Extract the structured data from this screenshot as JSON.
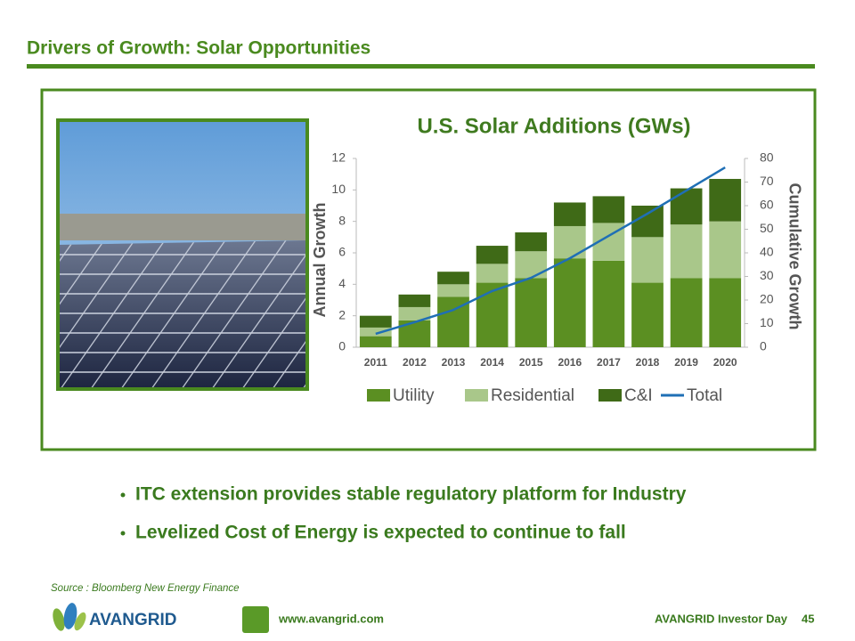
{
  "slide": {
    "title": "Drivers of Growth: Solar Opportunities",
    "bullets": [
      "ITC extension provides stable regulatory platform for Industry",
      "Levelized Cost of Energy is expected to continue to fall"
    ],
    "source": "Source : Bloomberg New Energy Finance",
    "logo": "AVANGRID",
    "website": "www.avangrid.com",
    "event": "AVANGRID Investor Day",
    "page": 45
  },
  "chart_data": {
    "type": "bar",
    "stacked": true,
    "title": "U.S. Solar Additions (GWs)",
    "y_label": "Annual Growth",
    "y2_label": "Cumulative Growth",
    "categories": [
      "2011",
      "2012",
      "2013",
      "2014",
      "2015",
      "2016",
      "2017",
      "2018",
      "2019",
      "2020"
    ],
    "series": [
      {
        "name": "Utility",
        "color": "#5b8f22",
        "values": [
          0.7,
          1.7,
          3.2,
          4.1,
          4.4,
          5.65,
          5.5,
          4.1,
          4.4,
          4.4
        ]
      },
      {
        "name": "Residential",
        "color": "#a9c78a",
        "values": [
          0.55,
          0.85,
          0.8,
          1.2,
          1.7,
          2.05,
          2.4,
          2.9,
          3.4,
          3.6
        ]
      },
      {
        "name": "C&I",
        "color": "#3f6a17",
        "values": [
          0.75,
          0.8,
          0.8,
          1.15,
          1.2,
          1.5,
          1.7,
          2.0,
          2.3,
          2.7
        ]
      },
      {
        "name": "Total",
        "type": "line",
        "axis": "y2",
        "color": "#1f6fb5",
        "values": [
          5.7,
          10.6,
          15.8,
          23.8,
          29.4,
          37.7,
          47.2,
          56.6,
          66.4,
          76.2
        ]
      }
    ],
    "ylim": [
      0,
      12
    ],
    "yticks": [
      0,
      2,
      4,
      6,
      8,
      10,
      12
    ],
    "y2lim": [
      0,
      80
    ],
    "y2ticks": [
      0,
      10,
      20,
      30,
      40,
      50,
      60,
      70,
      80
    ],
    "legend": "bottom"
  }
}
